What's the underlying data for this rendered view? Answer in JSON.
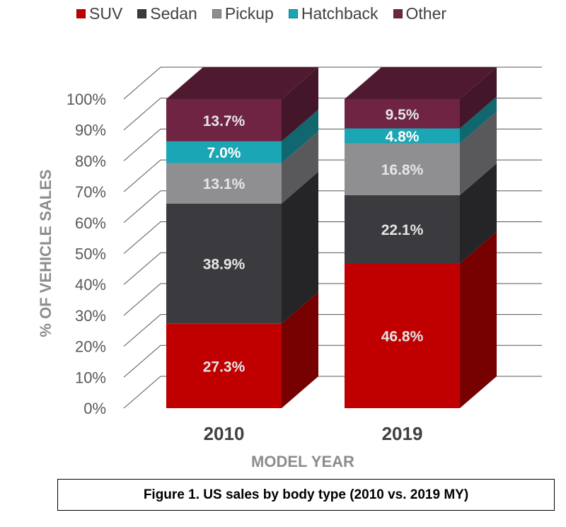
{
  "chart_data": {
    "type": "bar",
    "stacked": true,
    "three_d": true,
    "categories": [
      "2010",
      "2019"
    ],
    "series": [
      {
        "name": "SUV",
        "values": [
          27.3,
          46.8
        ],
        "color": "#c00000",
        "label_color": "#e6e6e6"
      },
      {
        "name": "Sedan",
        "values": [
          38.9,
          22.1
        ],
        "color": "#3b3b3f",
        "label_color": "#e6e6e6"
      },
      {
        "name": "Pickup",
        "values": [
          13.1,
          16.8
        ],
        "color": "#8f8f92",
        "label_color": "#e6e6e6"
      },
      {
        "name": "Hatchback",
        "values": [
          7.0,
          4.8
        ],
        "color": "#1aa6b4",
        "label_color": "#ffffff"
      },
      {
        "name": "Other",
        "values": [
          13.7,
          9.5
        ],
        "color": "#6e2442",
        "label_color": "#e6e6e6"
      }
    ],
    "data_labels": [
      [
        "27.3%",
        "38.9%",
        "13.1%",
        "7.0%",
        "13.7%"
      ],
      [
        "46.8%",
        "22.1%",
        "16.8%",
        "4.8%",
        "9.5%"
      ]
    ],
    "ylabel": "% OF VEHICLE SALES",
    "xlabel": "MODEL YEAR",
    "ylim": [
      0,
      100
    ],
    "yticks": [
      "0%",
      "10%",
      "20%",
      "30%",
      "40%",
      "50%",
      "60%",
      "70%",
      "80%",
      "90%",
      "100%"
    ],
    "grid": true,
    "legend_position": "top"
  },
  "caption": "Figure 1. US sales by body type (2010 vs. 2019 MY)"
}
